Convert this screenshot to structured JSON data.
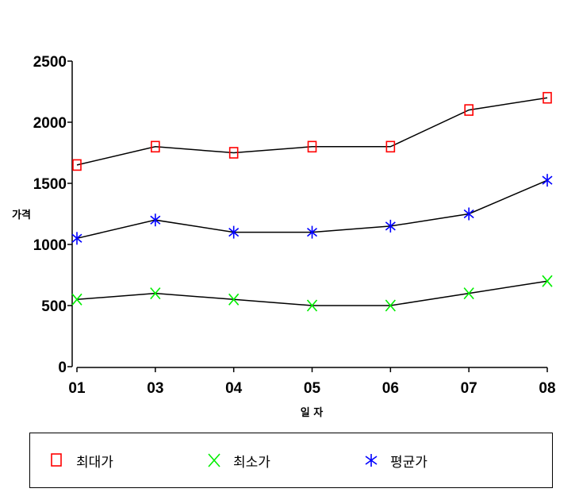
{
  "chart_data": {
    "type": "line",
    "xlabel": "일 자",
    "ylabel": "가격",
    "categories": [
      "01",
      "03",
      "04",
      "05",
      "06",
      "07",
      "08"
    ],
    "ylim": [
      0,
      2500
    ],
    "yticks": [
      0,
      500,
      1000,
      1500,
      2000,
      2500
    ],
    "series": [
      {
        "name": "최대가",
        "marker": "square",
        "color": "#ff0000",
        "values": [
          1650,
          1800,
          1750,
          1800,
          1800,
          2100,
          2200
        ]
      },
      {
        "name": "최소가",
        "marker": "x",
        "color": "#00ee00",
        "values": [
          550,
          600,
          550,
          500,
          500,
          600,
          700
        ]
      },
      {
        "name": "평균가",
        "marker": "asterisk",
        "color": "#0000ff",
        "values": [
          1050,
          1200,
          1100,
          1100,
          1150,
          1250,
          1525
        ]
      }
    ],
    "line_color": "#000000",
    "legend_position": "bottom",
    "grid": false
  }
}
